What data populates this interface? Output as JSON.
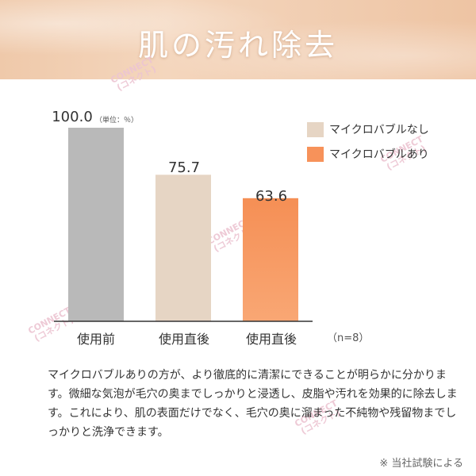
{
  "header": {
    "title": "肌の汚れ除去"
  },
  "watermark": {
    "line1": "CONNECT",
    "line2": "(コネクト)"
  },
  "chart_data": {
    "type": "bar",
    "unit_note": "（単位：％）",
    "categories": [
      "使用前",
      "使用直後",
      "使用直後"
    ],
    "values": [
      100.0,
      75.7,
      63.6
    ],
    "value_labels": [
      "100.0",
      "75.7",
      "63.6"
    ],
    "bar_colors": [
      "#b9b9b9",
      "#e6d5c4",
      "#f7925a"
    ],
    "legend": [
      {
        "label": "マイクロバブルなし",
        "color": "#e6d5c4"
      },
      {
        "label": "マイクロバブルあり",
        "color": "#f7925a"
      }
    ],
    "sample_note": "（n=8）",
    "ylim": [
      0,
      100
    ]
  },
  "description": "マイクロバブルありの方が、より徹底的に清潔にできることが明らかに分かります。微細な気泡が毛穴の奥までしっかりと浸透し、皮脂や汚れを効果的に除去します。これにより、肌の表面だけでなく、毛穴の奥に溜まった不純物や残留物までしっかりと洗浄できます。",
  "footnote": "※ 当社試験による"
}
